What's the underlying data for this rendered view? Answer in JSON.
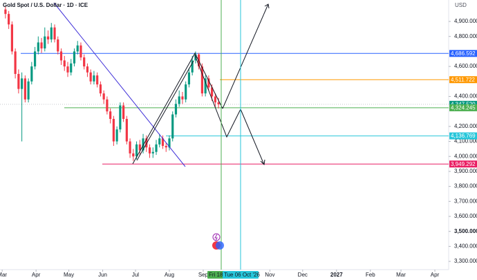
{
  "chart_data": {
    "type": "candlestick",
    "title": "Gold Spot / U.S. Dollar · 1D · ICE",
    "currency": "USD",
    "xlim": [
      -2,
      408
    ],
    "ylim": [
      3245,
      5043
    ],
    "grid": false,
    "up_color": "#089981",
    "down_color": "#f23645",
    "xticks": [
      {
        "value": 0,
        "label": "Mar"
      },
      {
        "value": 31,
        "label": "Apr"
      },
      {
        "value": 61,
        "label": "May"
      },
      {
        "value": 92,
        "label": "Jun"
      },
      {
        "value": 122,
        "label": "Jul"
      },
      {
        "value": 153,
        "label": "Aug"
      },
      {
        "value": 184,
        "label": "Sep"
      },
      {
        "value": 245,
        "label": "Nov"
      },
      {
        "value": 275,
        "label": "Dec"
      },
      {
        "value": 306,
        "label": "2027"
      },
      {
        "value": 337,
        "label": "Feb"
      },
      {
        "value": 365,
        "label": "Mar"
      },
      {
        "value": 396,
        "label": "Apr"
      }
    ],
    "yticks": [
      {
        "value": 4900,
        "label": "4,900.000"
      },
      {
        "value": 4800,
        "label": "4,800.000"
      },
      {
        "value": 4600,
        "label": "4,600.000"
      },
      {
        "value": 4400,
        "label": "4,400.000"
      },
      {
        "value": 4200,
        "label": "4,200.000"
      },
      {
        "value": 4100,
        "label": "4,100.000"
      },
      {
        "value": 4000,
        "label": "4,000.000"
      },
      {
        "value": 3900,
        "label": "3,900.000"
      },
      {
        "value": 3800,
        "label": "3,800.000"
      },
      {
        "value": 3700,
        "label": "3,700.000"
      },
      {
        "value": 3600,
        "label": "3,600.000"
      },
      {
        "value": 3500,
        "label": "3,500.000"
      },
      {
        "value": 3400,
        "label": "3,400.000"
      },
      {
        "value": 3300,
        "label": "3,300.000"
      }
    ],
    "candles": {
      "x": [
        3,
        6,
        9,
        12,
        15,
        18,
        21,
        24,
        27,
        30,
        33,
        36,
        39,
        42,
        45,
        48,
        51,
        54,
        57,
        60,
        63,
        66,
        69,
        72,
        75,
        78,
        81,
        84,
        87,
        90,
        93,
        96,
        99,
        102,
        105,
        108,
        111,
        114,
        117,
        120,
        123,
        126,
        129,
        132,
        135,
        138,
        141,
        144,
        147,
        150,
        153,
        156,
        159,
        162,
        165,
        168,
        171,
        174,
        177,
        180,
        183,
        186,
        189,
        192,
        195,
        198
      ],
      "open": [
        4980,
        4950,
        4880,
        4700,
        4550,
        4450,
        4520,
        4380,
        4500,
        4600,
        4700,
        4760,
        4720,
        4800,
        4780,
        4860,
        4780,
        4700,
        4640,
        4600,
        4560,
        4620,
        4700,
        4740,
        4660,
        4600,
        4560,
        4500,
        4540,
        4480,
        4420,
        4380,
        4300,
        4250,
        4100,
        4180,
        4340,
        4250,
        4100,
        4020,
        4000,
        4080,
        4040,
        4120,
        4060,
        4020,
        4030,
        4080,
        4120,
        4070,
        4060,
        4120,
        4280,
        4350,
        4400,
        4380,
        4480,
        4560,
        4640,
        4680,
        4600,
        4420,
        4520,
        4460,
        4400,
        4360
      ],
      "high": [
        5000,
        4970,
        4900,
        4720,
        4580,
        4560,
        4540,
        4520,
        4630,
        4730,
        4800,
        4790,
        4860,
        4840,
        4890,
        4880,
        4800,
        4720,
        4670,
        4630,
        4650,
        4720,
        4770,
        4760,
        4680,
        4620,
        4580,
        4570,
        4560,
        4500,
        4440,
        4400,
        4320,
        4270,
        4200,
        4360,
        4360,
        4270,
        4120,
        4050,
        4100,
        4110,
        4150,
        4140,
        4080,
        4060,
        4110,
        4150,
        4140,
        4090,
        4140,
        4300,
        4380,
        4440,
        4430,
        4500,
        4590,
        4670,
        4700,
        4690,
        4620,
        4540,
        4540,
        4480,
        4420,
        4390
      ],
      "low": [
        4920,
        4850,
        4680,
        4520,
        4420,
        4100,
        4360,
        4360,
        4480,
        4580,
        4680,
        4690,
        4700,
        4750,
        4760,
        4760,
        4680,
        4610,
        4570,
        4530,
        4540,
        4600,
        4680,
        4640,
        4580,
        4530,
        4480,
        4480,
        4460,
        4400,
        4350,
        4280,
        4220,
        4070,
        4080,
        4160,
        4230,
        4080,
        3990,
        3970,
        3980,
        4010,
        4020,
        4030,
        3990,
        3990,
        4010,
        4060,
        4050,
        4030,
        4040,
        4100,
        4260,
        4330,
        4350,
        4360,
        4460,
        4540,
        4620,
        4580,
        4400,
        4400,
        4440,
        4370,
        4330,
        4320
      ],
      "close": [
        4950,
        4880,
        4700,
        4550,
        4450,
        4520,
        4380,
        4500,
        4600,
        4700,
        4760,
        4720,
        4800,
        4780,
        4860,
        4780,
        4700,
        4640,
        4600,
        4560,
        4620,
        4700,
        4740,
        4660,
        4600,
        4560,
        4500,
        4540,
        4480,
        4420,
        4380,
        4300,
        4250,
        4100,
        4180,
        4340,
        4250,
        4100,
        4020,
        4000,
        4080,
        4040,
        4120,
        4060,
        4020,
        4030,
        4080,
        4120,
        4070,
        4060,
        4120,
        4280,
        4350,
        4400,
        4380,
        4480,
        4560,
        4640,
        4680,
        4600,
        4420,
        4520,
        4460,
        4400,
        4360,
        4347.52
      ]
    },
    "levels": [
      {
        "value": 4686.592,
        "label": "4,686.592",
        "color": "#2962ff"
      },
      {
        "value": 4511.722,
        "label": "4,511.722",
        "color": "#ff9800"
      },
      {
        "value": 4347.52,
        "label": "4,347.520",
        "color": "#089981"
      },
      {
        "value": 4324.245,
        "label": "4,324.245",
        "color": "#4caf50"
      },
      {
        "value": 4136.769,
        "label": "4,136.769",
        "color": "#26c6da"
      },
      {
        "value": 3949.292,
        "label": "3,949.292",
        "color": "#e91e63"
      }
    ],
    "date_markers": [
      {
        "label": "Fri 18 S",
        "color": "#4caf50"
      },
      {
        "label": "Tue 06 Oct '26",
        "color": "#26c6da"
      }
    ]
  }
}
